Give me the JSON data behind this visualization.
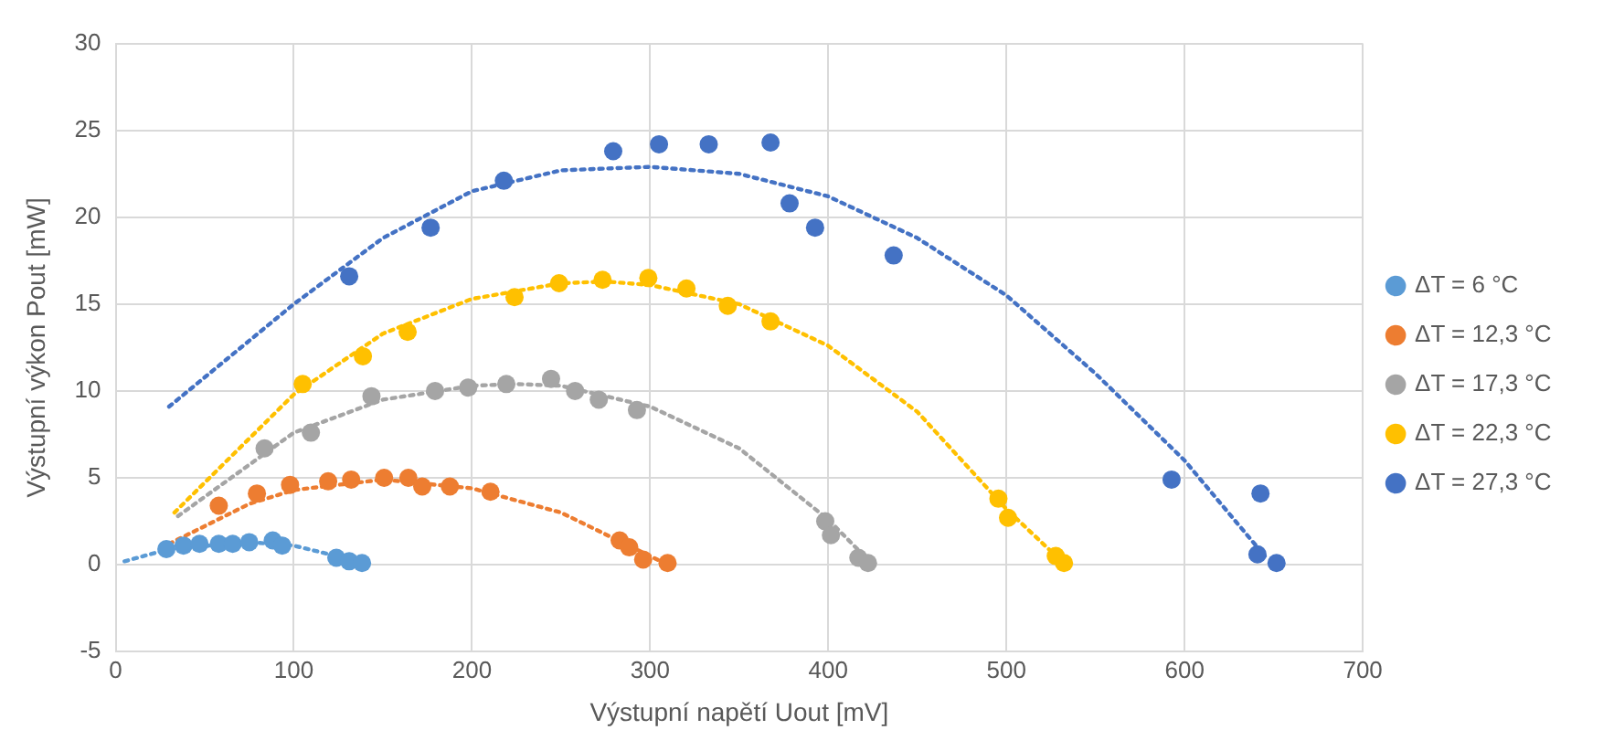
{
  "chart_data": {
    "type": "scatter",
    "xlabel": "Výstupní napětí Uout [mV]",
    "ylabel": "Výstupní výkon Pout [mW]",
    "xlim": [
      0,
      700
    ],
    "xticks": [
      0,
      100,
      200,
      300,
      400,
      500,
      600,
      700
    ],
    "ylim": [
      -5,
      30
    ],
    "yticks": [
      -5,
      0,
      5,
      10,
      15,
      20,
      25,
      30
    ],
    "grid": true,
    "legend": "right",
    "marker": "circle",
    "series": [
      {
        "name": "ΔT = 6 °C",
        "color": "#5b9bd5",
        "x": [
          28.5,
          38.1,
          47.1,
          57.9,
          65.7,
          75,
          88.2,
          93.5,
          123.9,
          131.1,
          138.3
        ],
        "values": [
          0.9,
          1.1,
          1.2,
          1.2,
          1.2,
          1.3,
          1.4,
          1.1,
          0.4,
          0.2,
          0.1
        ]
      },
      {
        "name": "ΔT = 12,3 °C",
        "color": "#ed7d31",
        "x": [
          57.9,
          79.3,
          97.9,
          119.3,
          132.2,
          150.7,
          164.3,
          172.1,
          187.6,
          210.4,
          282.9,
          288.3,
          296.1,
          309.8
        ],
        "values": [
          3.4,
          4.1,
          4.6,
          4.8,
          4.9,
          5.0,
          5.0,
          4.5,
          4.5,
          4.2,
          1.4,
          1.0,
          0.3,
          0.1
        ]
      },
      {
        "name": "ΔT = 17,3 °C",
        "color": "#a5a5a5",
        "x": [
          83.6,
          109.6,
          143.6,
          179.3,
          197.9,
          219.3,
          244.4,
          257.9,
          271.2,
          292.6,
          398.3,
          401.5,
          416.9,
          422.3
        ],
        "values": [
          6.7,
          7.6,
          9.7,
          10.0,
          10.2,
          10.4,
          10.7,
          10.0,
          9.5,
          8.9,
          2.5,
          1.7,
          0.4,
          0.1
        ]
      },
      {
        "name": "ΔT = 22,3 °C",
        "color": "#ffc000",
        "x": [
          105,
          138.8,
          163.9,
          223.9,
          248.9,
          273.3,
          299,
          320.4,
          343.6,
          367.6,
          495.5,
          500.9,
          527.7,
          532.3
        ],
        "values": [
          10.4,
          12.0,
          13.4,
          15.4,
          16.2,
          16.4,
          16.5,
          15.9,
          14.9,
          14.0,
          3.8,
          2.7,
          0.5,
          0.1
        ]
      },
      {
        "name": "ΔT = 27,3 °C",
        "color": "#4472c4",
        "x": [
          131.1,
          176.8,
          217.9,
          279.3,
          305,
          332.9,
          367.6,
          378.3,
          392.6,
          436.7,
          592.7,
          642.6,
          640.9,
          651.6
        ],
        "values": [
          16.6,
          19.4,
          22.1,
          23.8,
          24.2,
          24.2,
          24.3,
          20.8,
          19.4,
          17.8,
          4.9,
          4.1,
          0.6,
          0.1
        ]
      },
      {
        "type": "line",
        "color": "#5b9bd5",
        "marker": "none",
        "line_style": "dotted",
        "x": [
          5,
          30,
          75,
          100,
          140
        ],
        "values": [
          0.2,
          0.9,
          1.3,
          1.1,
          0.1
        ]
      },
      {
        "type": "line",
        "color": "#ed7d31",
        "marker": "none",
        "line_style": "dotted",
        "x": [
          30,
          75,
          100,
          150,
          200,
          250,
          300,
          310
        ],
        "values": [
          1.2,
          3.5,
          4.3,
          4.9,
          4.4,
          3,
          0.5,
          0
        ]
      },
      {
        "type": "line",
        "color": "#a5a5a5",
        "marker": "none",
        "line_style": "dotted",
        "x": [
          35,
          100,
          150,
          200,
          225,
          250,
          300,
          350,
          400,
          425
        ],
        "values": [
          2.8,
          7.6,
          9.5,
          10.3,
          10.4,
          10.3,
          9.1,
          6.7,
          2.6,
          0
        ]
      },
      {
        "type": "line",
        "color": "#ffc000",
        "marker": "none",
        "line_style": "dotted",
        "x": [
          33,
          100,
          150,
          200,
          250,
          275,
          300,
          350,
          400,
          450,
          500,
          533
        ],
        "values": [
          3,
          9.8,
          13.3,
          15.3,
          16.2,
          16.3,
          16.1,
          15,
          12.6,
          8.8,
          3.2,
          0
        ]
      },
      {
        "type": "line",
        "color": "#4472c4",
        "marker": "none",
        "line_style": "dotted",
        "x": [
          30,
          100,
          150,
          200,
          250,
          300,
          350,
          400,
          450,
          500,
          550,
          600,
          645
        ],
        "values": [
          9.1,
          15,
          18.8,
          21.5,
          22.7,
          22.9,
          22.5,
          21.2,
          18.8,
          15.5,
          11,
          6,
          0.5
        ]
      }
    ]
  }
}
